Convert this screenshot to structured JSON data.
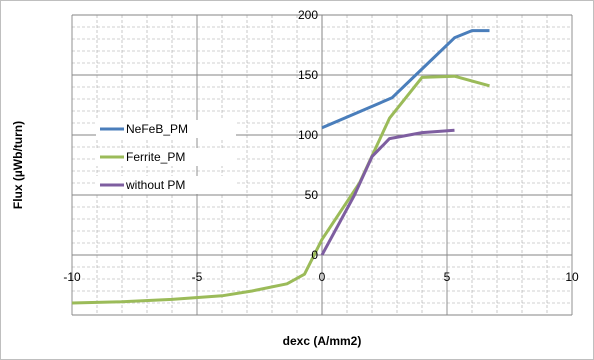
{
  "chart_data": {
    "type": "line",
    "title": "",
    "xlabel": "dexc (A/mm2)",
    "ylabel": "Flux (µWb/turn)",
    "xlim": [
      -10,
      10
    ],
    "ylim": [
      -50,
      200
    ],
    "x_ticks": [
      "-10",
      "-5",
      "0",
      "5",
      "10"
    ],
    "y_ticks": [
      "0",
      "50",
      "100",
      "150",
      "200"
    ],
    "x_tick_values": [
      -10,
      -5,
      0,
      5,
      10
    ],
    "y_tick_values": [
      0,
      50,
      100,
      150,
      200
    ],
    "grid": true,
    "legend_position": "left-middle",
    "series": [
      {
        "name": "NeFeB_PM",
        "color": "#4a7ebb",
        "x": [
          0,
          2.8,
          4.0,
          5.3,
          6.0,
          6.7
        ],
        "y": [
          106,
          131,
          155,
          181,
          187,
          187
        ]
      },
      {
        "name": "Ferrite_PM",
        "color": "#9bbb59",
        "x": [
          -10,
          -8,
          -6,
          -4,
          -2.8,
          -1.4,
          -0.7,
          0,
          1.5,
          2.7,
          4.0,
          5.3,
          6.7
        ],
        "y": [
          -40,
          -39,
          -37,
          -34,
          -30,
          -24,
          -16,
          13,
          60,
          114,
          148,
          149,
          141
        ]
      },
      {
        "name": "without PM",
        "color": "#7e5ea0",
        "x": [
          0,
          1.3,
          2.0,
          2.7,
          4.0,
          5.3
        ],
        "y": [
          0,
          50,
          82,
          97,
          102,
          104
        ]
      }
    ]
  }
}
